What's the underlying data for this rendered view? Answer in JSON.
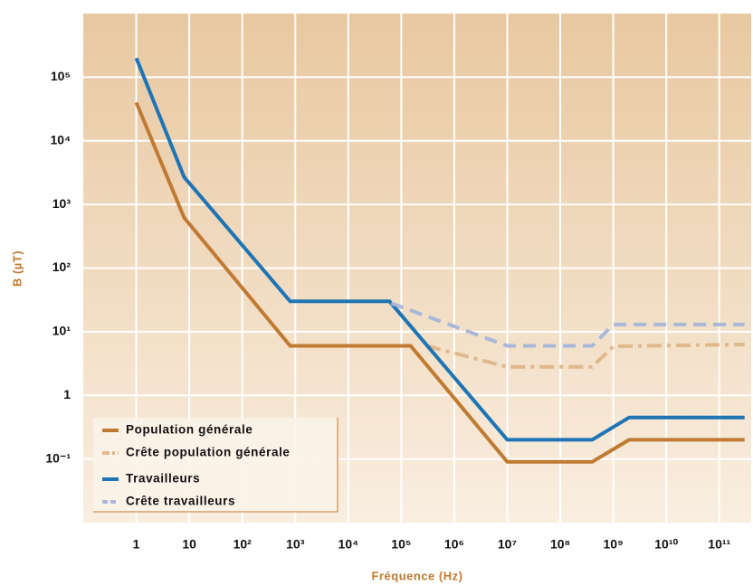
{
  "chart_data": {
    "type": "line",
    "x_label": "Fréquence (Hz)",
    "y_label": "B (µT)",
    "xscale": "log",
    "yscale": "log",
    "grid": true,
    "legend": "lower left",
    "xlim": [
      0.1,
      400000000000
    ],
    "ylim": [
      0.01,
      1000000
    ],
    "xticks": [
      1,
      10,
      {
        "value": 100,
        "label": "10²"
      },
      {
        "value": 1000,
        "label": "10³"
      },
      {
        "value": 10000,
        "label": "10⁴"
      },
      {
        "value": 100000,
        "label": "10⁵"
      },
      {
        "value": 1000000,
        "label": "10⁶"
      },
      {
        "value": 10000000,
        "label": "10⁷"
      },
      {
        "value": 100000000,
        "label": "10⁸"
      },
      {
        "value": 1000000000,
        "label": "10⁹"
      },
      {
        "value": 10000000000,
        "label": "10¹⁰"
      },
      {
        "value": 100000000000,
        "label": "10¹¹"
      }
    ],
    "yticks": [
      {
        "value": 0.1,
        "label": "10⁻¹"
      },
      1,
      {
        "value": 10,
        "label": "10¹"
      },
      {
        "value": 100,
        "label": "10²"
      },
      {
        "value": 1000,
        "label": "10³"
      },
      {
        "value": 10000,
        "label": "10⁴"
      },
      {
        "value": 100000,
        "label": "10⁵"
      }
    ],
    "series": [
      {
        "name": "Population générale",
        "color": "#c07a32",
        "style": "solid",
        "x": [
          1,
          8,
          800,
          150000,
          10000000,
          400000000,
          2000000000,
          300000000000
        ],
        "values": [
          40000,
          620,
          6,
          6,
          0.09,
          0.09,
          0.2,
          0.2
        ]
      },
      {
        "name": "Crête population générale",
        "color": "#dfb88c",
        "style": "dashdot",
        "x": [
          300000,
          10000000,
          400000000,
          1000000000,
          300000000000
        ],
        "values": [
          6,
          2.8,
          2.8,
          5.9,
          6.3
        ]
      },
      {
        "name": "Travailleurs",
        "color": "#1e74b4",
        "style": "solid",
        "x": [
          1,
          8,
          800,
          60000,
          10000000,
          400000000,
          2000000000,
          300000000000
        ],
        "values": [
          200000,
          2700,
          30,
          30,
          0.2,
          0.2,
          0.45,
          0.45
        ]
      },
      {
        "name": "Crête travailleurs",
        "color": "#a9b8d8",
        "style": "dashed",
        "x": [
          65000,
          10000000,
          400000000,
          1000000000,
          300000000000
        ],
        "values": [
          28,
          6,
          6,
          13,
          13
        ]
      }
    ]
  }
}
